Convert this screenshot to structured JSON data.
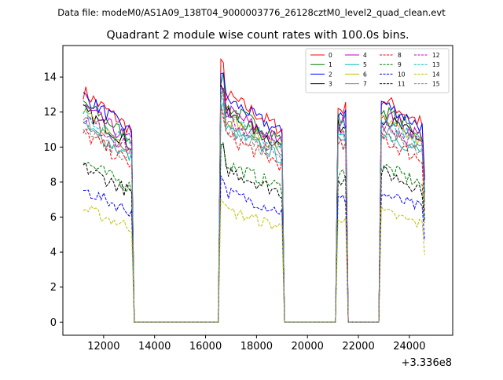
{
  "figure": {
    "suptitle": "Data file: modeM0/AS1A09_138T04_9000003776_26128cztM0_level2_quad_clean.evt"
  },
  "chart_data": {
    "type": "line",
    "title": "Quadrant 2 module wise count rates with 100.0s bins.",
    "xlabel": "",
    "ylabel": "",
    "x_offset_label": "+3.336e8",
    "x_offset": 333600000,
    "xlim": [
      10400,
      25700
    ],
    "ylim": [
      -0.75,
      15.8
    ],
    "x_ticks": [
      12000,
      14000,
      16000,
      18000,
      20000,
      22000,
      24000
    ],
    "x_tick_labels": [
      "12000",
      "14000",
      "16000",
      "18000",
      "20000",
      "22000",
      "24000"
    ],
    "y_ticks": [
      0,
      2,
      4,
      6,
      8,
      10,
      12,
      14
    ],
    "y_tick_labels": [
      "0",
      "2",
      "4",
      "6",
      "8",
      "10",
      "12",
      "14"
    ],
    "bin_size_s": 100,
    "active_segments": [
      {
        "start": 11200,
        "end": 13100,
        "shape": "steep"
      },
      {
        "start": 16600,
        "end": 19000,
        "shape": "steep"
      },
      {
        "start": 21200,
        "end": 21500,
        "shape": "flat"
      },
      {
        "start": 22900,
        "end": 24600,
        "shape": "moderate"
      }
    ],
    "legend": {
      "placement": "upper right",
      "columns": 4
    },
    "series": [
      {
        "name": "0",
        "color": "#ff0000",
        "dash": "solid",
        "level": 12.2,
        "noise": 0.45
      },
      {
        "name": "1",
        "color": "#008000",
        "dash": "solid",
        "level": 11.6,
        "noise": 0.4
      },
      {
        "name": "2",
        "color": "#0000ff",
        "dash": "solid",
        "level": 12.0,
        "noise": 0.4
      },
      {
        "name": "3",
        "color": "#000000",
        "dash": "solid",
        "level": 11.2,
        "noise": 0.4
      },
      {
        "name": "4",
        "color": "#bf00bf",
        "dash": "solid",
        "level": 11.4,
        "noise": 0.45
      },
      {
        "name": "5",
        "color": "#00bfbf",
        "dash": "solid",
        "level": 10.4,
        "noise": 0.4
      },
      {
        "name": "6",
        "color": "#bfbf00",
        "dash": "solid",
        "level": 11.0,
        "noise": 0.4
      },
      {
        "name": "7",
        "color": "#808080",
        "dash": "solid",
        "level": 10.7,
        "noise": 0.4
      },
      {
        "name": "8",
        "color": "#ff0000",
        "dash": "dashed",
        "level": 10.0,
        "noise": 0.45
      },
      {
        "name": "9",
        "color": "#008000",
        "dash": "dashed",
        "level": 8.5,
        "noise": 0.4
      },
      {
        "name": "10",
        "color": "#0000ff",
        "dash": "dashed",
        "level": 7.0,
        "noise": 0.35
      },
      {
        "name": "11",
        "color": "#000000",
        "dash": "dashed",
        "level": 8.2,
        "noise": 0.4
      },
      {
        "name": "12",
        "color": "#bf00bf",
        "dash": "dashed",
        "level": 10.9,
        "noise": 0.45
      },
      {
        "name": "13",
        "color": "#00bfbf",
        "dash": "dashed",
        "level": 11.1,
        "noise": 0.4
      },
      {
        "name": "14",
        "color": "#bfbf00",
        "dash": "dashed",
        "level": 6.0,
        "noise": 0.35
      },
      {
        "name": "15",
        "color": "#808080",
        "dash": "dashed",
        "level": 10.3,
        "noise": 0.4
      }
    ]
  }
}
